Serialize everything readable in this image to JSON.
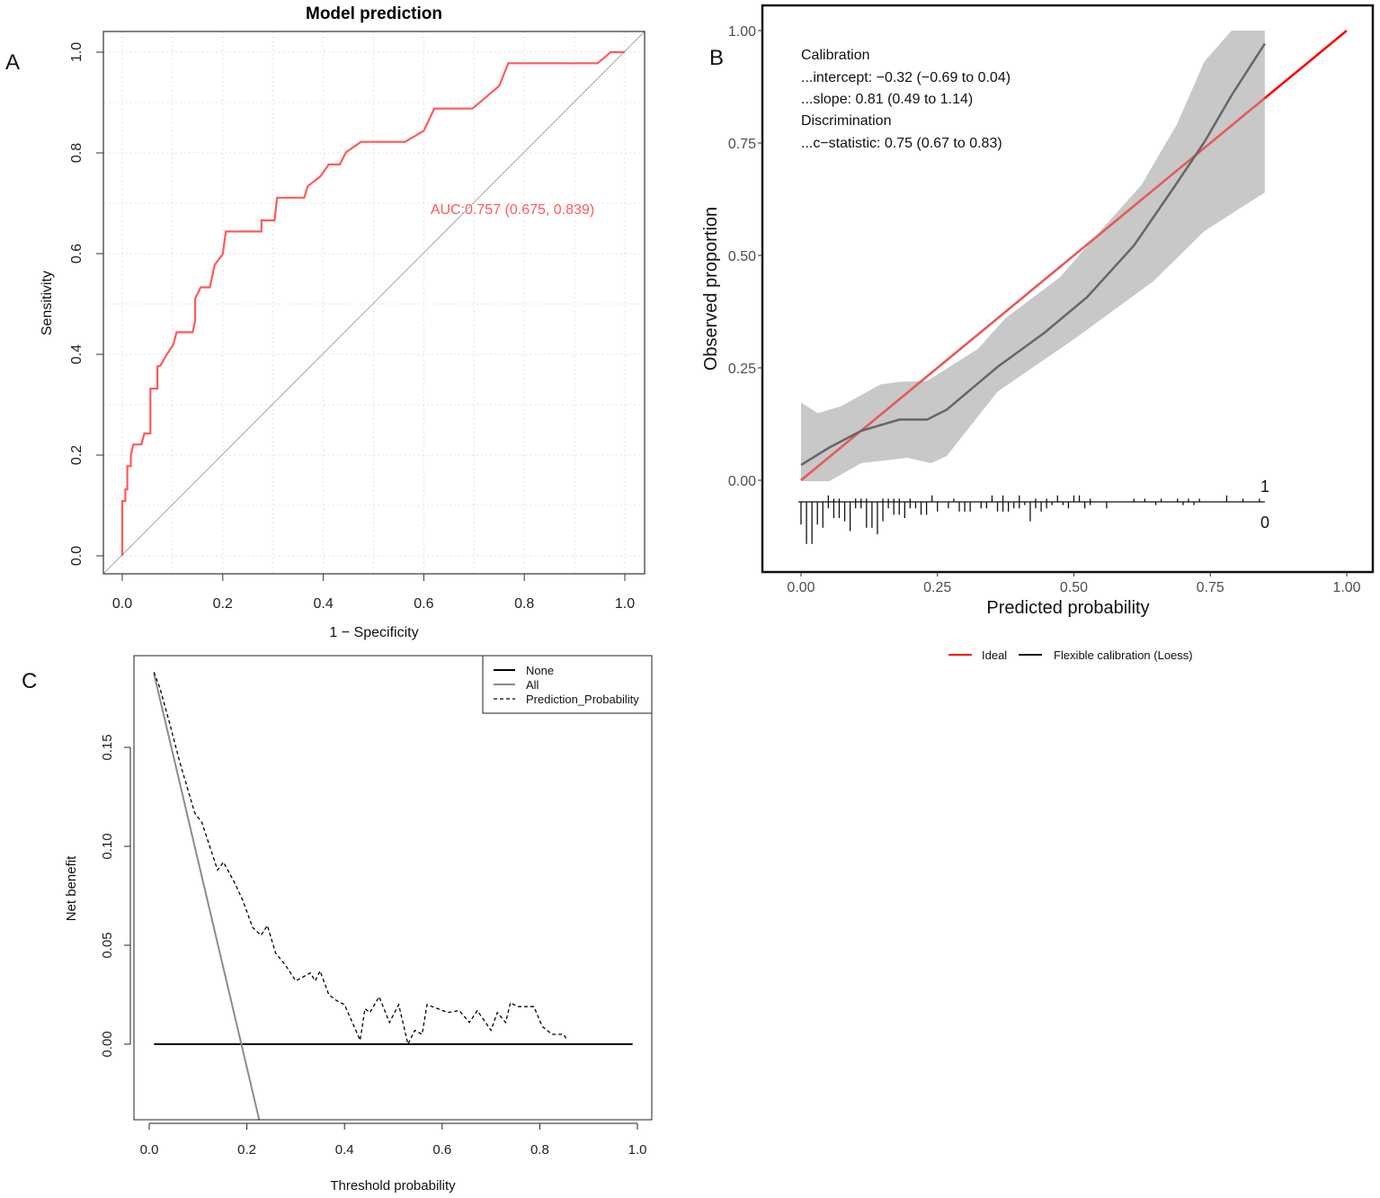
{
  "panels": {
    "a": "A",
    "b": "B",
    "c": "C"
  },
  "chart_data": [
    {
      "id": "roc",
      "type": "line",
      "title": "Model prediction",
      "xlabel": "1 − Specificity",
      "ylabel": "Sensitivity",
      "xlim": [
        -0.04,
        1.04
      ],
      "ylim": [
        -0.036,
        1.04
      ],
      "xticks": [
        "0.0",
        "0.2",
        "0.4",
        "0.6",
        "0.8",
        "1.0"
      ],
      "yticks": [
        "0.0",
        "0.2",
        "0.4",
        "0.6",
        "0.8",
        "1.0"
      ],
      "grid": true,
      "annotation": "AUC:0.757 (0.675, 0.839)",
      "colors": {
        "roc": "#ff5a5a",
        "reference": "#a8a8a8"
      },
      "series": [
        {
          "name": "ROC",
          "points": [
            [
              0,
              0
            ],
            [
              0,
              0.109
            ],
            [
              0.006,
              0.109
            ],
            [
              0.006,
              0.132
            ],
            [
              0.01,
              0.132
            ],
            [
              0.01,
              0.178
            ],
            [
              0.017,
              0.178
            ],
            [
              0.017,
              0.199
            ],
            [
              0.022,
              0.221
            ],
            [
              0.038,
              0.221
            ],
            [
              0.044,
              0.243
            ],
            [
              0.056,
              0.243
            ],
            [
              0.056,
              0.332
            ],
            [
              0.07,
              0.332
            ],
            [
              0.07,
              0.376
            ],
            [
              0.076,
              0.378
            ],
            [
              0.088,
              0.399
            ],
            [
              0.102,
              0.42
            ],
            [
              0.108,
              0.444
            ],
            [
              0.14,
              0.444
            ],
            [
              0.145,
              0.467
            ],
            [
              0.145,
              0.511
            ],
            [
              0.156,
              0.533
            ],
            [
              0.174,
              0.533
            ],
            [
              0.184,
              0.578
            ],
            [
              0.2,
              0.599
            ],
            [
              0.206,
              0.644
            ],
            [
              0.277,
              0.644
            ],
            [
              0.277,
              0.666
            ],
            [
              0.303,
              0.666
            ],
            [
              0.308,
              0.711
            ],
            [
              0.362,
              0.711
            ],
            [
              0.369,
              0.734
            ],
            [
              0.394,
              0.753
            ],
            [
              0.411,
              0.777
            ],
            [
              0.433,
              0.777
            ],
            [
              0.445,
              0.801
            ],
            [
              0.475,
              0.822
            ],
            [
              0.563,
              0.822
            ],
            [
              0.6,
              0.844
            ],
            [
              0.621,
              0.888
            ],
            [
              0.697,
              0.888
            ],
            [
              0.75,
              0.933
            ],
            [
              0.768,
              0.978
            ],
            [
              0.946,
              0.978
            ],
            [
              0.972,
              1
            ],
            [
              1,
              1
            ]
          ]
        }
      ]
    },
    {
      "id": "calibration",
      "type": "line",
      "xlabel": "Predicted probability",
      "ylabel": "Observed proportion",
      "xlim": [
        -0.07,
        1.05
      ],
      "ylim": [
        -0.2,
        1.056
      ],
      "xticks": [
        "0.00",
        "0.25",
        "0.50",
        "0.75",
        "1.00"
      ],
      "yticks": [
        "0.00",
        "0.25",
        "0.50",
        "0.75",
        "1.00"
      ],
      "annotations": [
        "Calibration",
        "...intercept: −0.32 (−0.69 to 0.04)",
        "...slope: 0.81 (0.49 to 1.14)",
        "Discrimination",
        "...c−statistic: 0.75 (0.67 to 0.83)"
      ],
      "legend": [
        "Ideal",
        "Flexible calibration (Loess)"
      ],
      "legend_position": "bottom",
      "colors": {
        "ideal": "#ff0000",
        "loess": "#666666",
        "band": "#c8c8c8"
      },
      "ideal": [
        [
          0,
          0
        ],
        [
          1,
          1
        ]
      ],
      "loess": [
        [
          0,
          0.034
        ],
        [
          0.052,
          0.073
        ],
        [
          0.11,
          0.11
        ],
        [
          0.18,
          0.135
        ],
        [
          0.231,
          0.135
        ],
        [
          0.267,
          0.157
        ],
        [
          0.36,
          0.252
        ],
        [
          0.446,
          0.328
        ],
        [
          0.524,
          0.407
        ],
        [
          0.61,
          0.522
        ],
        [
          0.682,
          0.649
        ],
        [
          0.739,
          0.752
        ],
        [
          0.789,
          0.856
        ],
        [
          0.85,
          0.971
        ]
      ],
      "band_upper": [
        [
          0,
          0.173
        ],
        [
          0.031,
          0.149
        ],
        [
          0.074,
          0.165
        ],
        [
          0.145,
          0.213
        ],
        [
          0.18,
          0.219
        ],
        [
          0.231,
          0.221
        ],
        [
          0.324,
          0.292
        ],
        [
          0.374,
          0.36
        ],
        [
          0.474,
          0.451
        ],
        [
          0.56,
          0.57
        ],
        [
          0.624,
          0.657
        ],
        [
          0.689,
          0.792
        ],
        [
          0.739,
          0.931
        ],
        [
          0.789,
          1.0
        ],
        [
          0.85,
          1.0
        ]
      ],
      "band_lower": [
        [
          0,
          -0.002
        ],
        [
          0.052,
          -0.002
        ],
        [
          0.11,
          0.038
        ],
        [
          0.195,
          0.05
        ],
        [
          0.238,
          0.038
        ],
        [
          0.267,
          0.054
        ],
        [
          0.36,
          0.197
        ],
        [
          0.503,
          0.316
        ],
        [
          0.646,
          0.443
        ],
        [
          0.739,
          0.554
        ],
        [
          0.85,
          0.64
        ]
      ],
      "rug_labels": [
        "1",
        "0"
      ],
      "rug_events": [
        [
          0.05,
          2
        ],
        [
          0.06,
          1
        ],
        [
          0.07,
          1
        ],
        [
          0.1,
          1
        ],
        [
          0.11,
          1
        ],
        [
          0.12,
          1
        ],
        [
          0.15,
          1
        ],
        [
          0.16,
          1
        ],
        [
          0.17,
          1
        ],
        [
          0.18,
          1
        ],
        [
          0.2,
          1
        ],
        [
          0.24,
          2
        ],
        [
          0.28,
          1
        ],
        [
          0.35,
          2
        ],
        [
          0.37,
          2
        ],
        [
          0.4,
          2
        ],
        [
          0.43,
          1
        ],
        [
          0.45,
          1
        ],
        [
          0.47,
          2
        ],
        [
          0.5,
          2
        ],
        [
          0.51,
          2
        ],
        [
          0.53,
          1
        ],
        [
          0.61,
          1
        ],
        [
          0.63,
          1
        ],
        [
          0.66,
          1
        ],
        [
          0.69,
          1
        ],
        [
          0.71,
          1
        ],
        [
          0.73,
          1
        ],
        [
          0.78,
          2
        ],
        [
          0.81,
          1
        ],
        [
          0.84,
          1
        ]
      ],
      "rug_nonevents": [
        [
          0.0,
          7
        ],
        [
          0.01,
          13
        ],
        [
          0.02,
          13
        ],
        [
          0.03,
          7
        ],
        [
          0.04,
          8
        ],
        [
          0.05,
          2
        ],
        [
          0.06,
          5
        ],
        [
          0.07,
          5
        ],
        [
          0.08,
          6
        ],
        [
          0.09,
          9
        ],
        [
          0.1,
          2
        ],
        [
          0.11,
          2
        ],
        [
          0.12,
          8
        ],
        [
          0.13,
          8
        ],
        [
          0.14,
          10
        ],
        [
          0.15,
          6
        ],
        [
          0.16,
          2
        ],
        [
          0.17,
          4
        ],
        [
          0.18,
          4
        ],
        [
          0.19,
          5
        ],
        [
          0.2,
          2
        ],
        [
          0.21,
          2
        ],
        [
          0.22,
          4
        ],
        [
          0.23,
          4
        ],
        [
          0.25,
          3
        ],
        [
          0.27,
          2
        ],
        [
          0.29,
          3
        ],
        [
          0.3,
          3
        ],
        [
          0.31,
          3
        ],
        [
          0.33,
          2
        ],
        [
          0.34,
          2
        ],
        [
          0.36,
          3
        ],
        [
          0.37,
          3
        ],
        [
          0.38,
          3
        ],
        [
          0.39,
          2
        ],
        [
          0.4,
          2
        ],
        [
          0.41,
          1
        ],
        [
          0.42,
          6
        ],
        [
          0.43,
          2
        ],
        [
          0.44,
          3
        ],
        [
          0.45,
          2
        ],
        [
          0.46,
          1
        ],
        [
          0.48,
          1
        ],
        [
          0.49,
          2
        ],
        [
          0.52,
          2
        ],
        [
          0.53,
          1
        ],
        [
          0.56,
          2
        ],
        [
          0.65,
          1
        ],
        [
          0.7,
          1
        ],
        [
          0.72,
          1
        ]
      ]
    },
    {
      "id": "dca",
      "type": "line",
      "xlabel": "Threshold probability",
      "ylabel": "Net benefit",
      "xlim": [
        -0.03,
        1.03
      ],
      "ylim": [
        -0.038,
        0.196
      ],
      "xticks": [
        0,
        0.2,
        0.4,
        0.6,
        0.8,
        1.0
      ],
      "xtick_labels": [
        "0.0",
        "0.2",
        "0.4",
        "0.6",
        "0.8",
        "1.0"
      ],
      "yticks": [
        0,
        0.05,
        0.1,
        0.15
      ],
      "ytick_labels": [
        "0.00",
        "0.05",
        "0.10",
        "0.15"
      ],
      "legend_position": "top-right",
      "series": [
        {
          "name": "None",
          "style": "solid",
          "color": "#000000",
          "points": [
            [
              0.01,
              0
            ],
            [
              0.99,
              0
            ]
          ]
        },
        {
          "name": "All",
          "style": "solid",
          "color": "#8c8c8c",
          "points": [
            [
              0.01,
              0.187
            ],
            [
              0.225,
              -0.038
            ]
          ]
        },
        {
          "name": "Prediction_Probability",
          "style": "dashed",
          "color": "#000000",
          "points": [
            [
              0.0095,
              0.188
            ],
            [
              0.022,
              0.18
            ],
            [
              0.042,
              0.162
            ],
            [
              0.062,
              0.143
            ],
            [
              0.093,
              0.117
            ],
            [
              0.108,
              0.112
            ],
            [
              0.14,
              0.088
            ],
            [
              0.152,
              0.092
            ],
            [
              0.174,
              0.082
            ],
            [
              0.191,
              0.073
            ],
            [
              0.212,
              0.059
            ],
            [
              0.229,
              0.055
            ],
            [
              0.242,
              0.06
            ],
            [
              0.259,
              0.046
            ],
            [
              0.279,
              0.04
            ],
            [
              0.3,
              0.032
            ],
            [
              0.33,
              0.036
            ],
            [
              0.34,
              0.032
            ],
            [
              0.35,
              0.037
            ],
            [
              0.368,
              0.025
            ],
            [
              0.384,
              0.022
            ],
            [
              0.4,
              0.02
            ],
            [
              0.432,
              0.002
            ],
            [
              0.442,
              0.018
            ],
            [
              0.452,
              0.016
            ],
            [
              0.471,
              0.024
            ],
            [
              0.492,
              0.011
            ],
            [
              0.511,
              0.02
            ],
            [
              0.53,
              0.0
            ],
            [
              0.544,
              0.007
            ],
            [
              0.559,
              0.005
            ],
            [
              0.569,
              0.02
            ],
            [
              0.612,
              0.016
            ],
            [
              0.635,
              0.017
            ],
            [
              0.656,
              0.011
            ],
            [
              0.672,
              0.017
            ],
            [
              0.7,
              0.007
            ],
            [
              0.713,
              0.016
            ],
            [
              0.73,
              0.011
            ],
            [
              0.74,
              0.021
            ],
            [
              0.754,
              0.019
            ],
            [
              0.788,
              0.019
            ],
            [
              0.805,
              0.009
            ],
            [
              0.825,
              0.005
            ],
            [
              0.849,
              0.005
            ],
            [
              0.856,
              0.002
            ]
          ]
        }
      ]
    }
  ]
}
